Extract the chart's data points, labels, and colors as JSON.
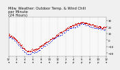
{
  "title": "Milw. Weather: Outdoor Temp. & Wind Chill",
  "title2": "per Minute",
  "title3": "(24 Hours)",
  "bg_color": "#f0f0f0",
  "plot_bg_color": "#f8f8f8",
  "grid_color": "#aaaaaa",
  "temp_color": "#cc0000",
  "windchill_color": "#0000cc",
  "ylim": [
    -25,
    35
  ],
  "yticks": [
    -20,
    -10,
    0,
    10,
    20,
    30
  ],
  "title_fontsize": 3.8,
  "tick_fontsize": 2.8,
  "waypoints_t": [
    0,
    1.5,
    4.5,
    7,
    9,
    12,
    15,
    18,
    20,
    22,
    24
  ],
  "waypoints_temp": [
    8,
    3,
    -18,
    -14,
    -5,
    8,
    20,
    27,
    24,
    20,
    18
  ],
  "waypoints_wc": [
    6,
    0,
    -22,
    -18,
    -8,
    5,
    17,
    24,
    21,
    17,
    15
  ],
  "dot_size": 0.5,
  "sample_every": 5
}
